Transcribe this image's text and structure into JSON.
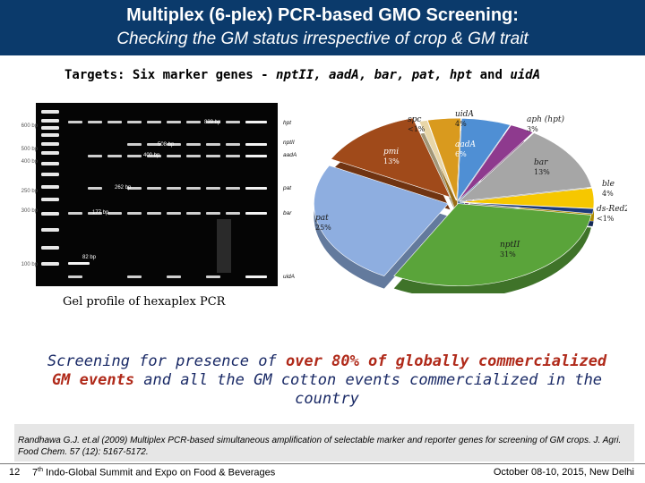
{
  "header": {
    "title": "Multiplex (6-plex) PCR-based GMO Screening:",
    "subtitle": "Checking the GM status irrespective of crop & GM trait"
  },
  "targets": {
    "lead": "Targets: Six marker genes - ",
    "genes": "nptII, aadA, bar, pat, hpt",
    "and": " and ",
    "last": "uidA"
  },
  "gel": {
    "caption": "Gel profile of hexaplex PCR",
    "ladder_labels": [
      "600 bp",
      "500 bp",
      "400 bp",
      "250 bp",
      "300 bp",
      "100 bp"
    ],
    "band_labels": [
      "839 bp",
      "508 bp",
      "400 bp",
      "262 bp",
      "177 bp",
      "82 bp"
    ],
    "gene_labels": [
      "hpt",
      "nptII",
      "aadA",
      "pat",
      "bar",
      "uidA"
    ]
  },
  "chart_data": {
    "type": "pie",
    "slices": [
      {
        "label": "spc",
        "value": "<1%",
        "pct": 1,
        "color": "#e8d6a8"
      },
      {
        "label": "uidA",
        "value": "4%",
        "pct": 4,
        "color": "#d99a1e"
      },
      {
        "label": "aadA",
        "value": "6%",
        "pct": 6,
        "color": "#4f8fd4"
      },
      {
        "label": "aph (hpt)",
        "value": "3%",
        "pct": 3,
        "color": "#8e3a8e"
      },
      {
        "label": "bar",
        "value": "13%",
        "pct": 13,
        "color": "#a6a6a6"
      },
      {
        "label": "ble",
        "value": "4%",
        "pct": 4,
        "color": "#f6c700"
      },
      {
        "label": "ds-Red2",
        "value": "<1%",
        "pct": 1,
        "color": "#1d3a7a"
      },
      {
        "label": "nptII",
        "value": "31%",
        "pct": 31,
        "color": "#5aa43a"
      },
      {
        "label": "pat",
        "value": "25%",
        "pct": 25,
        "color": "#8eaee0"
      },
      {
        "label": "pmi",
        "value": "13%",
        "pct": 13,
        "color": "#a04a1a"
      }
    ]
  },
  "screening": {
    "p1": "Screening for presence of ",
    "b1": "over 80% of globally commercialized GM events",
    "p2": " and all the GM cotton events commercialized in the country"
  },
  "reference": {
    "text": "Randhawa G.J. et.al (2009) Multiplex PCR-based simultaneous amplification of selectable marker and reporter genes for screening of GM crops. J. Agri. Food Chem. 57 (12): 5167-5172."
  },
  "footer": {
    "page": "12",
    "event_pre": "7",
    "event_sup": "th",
    "event_post": " Indo-Global Summit and Expo on Food & Beverages",
    "date": "October 08-10, 2015, New Delhi"
  }
}
